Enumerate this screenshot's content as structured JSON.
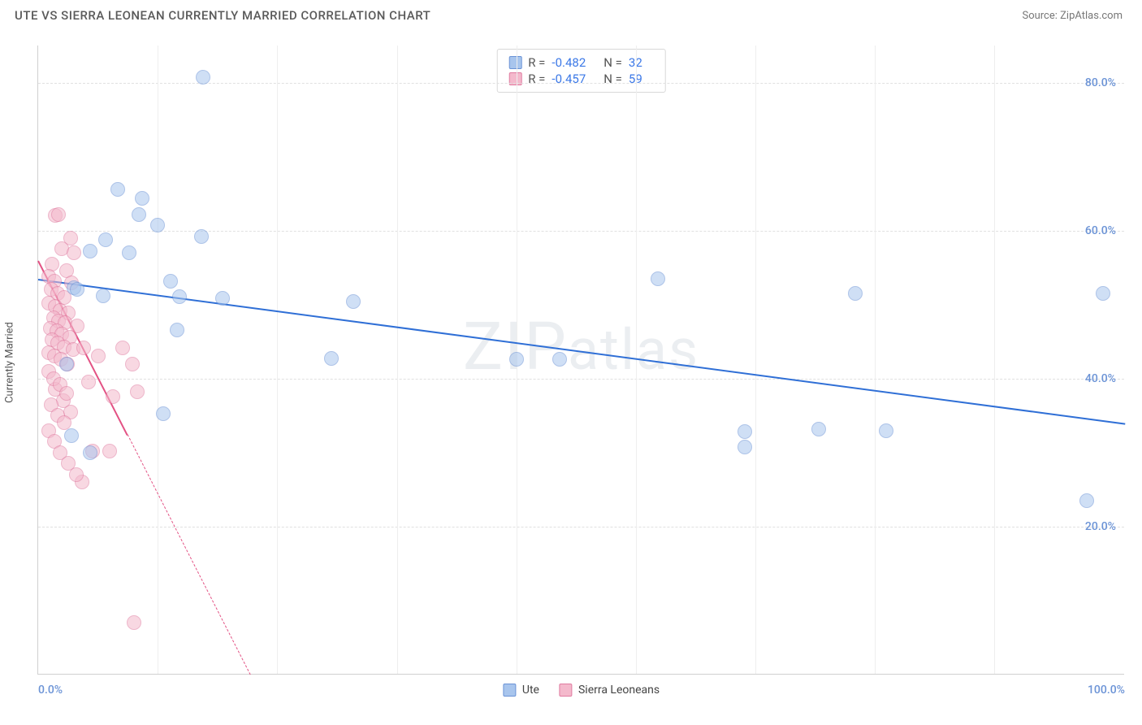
{
  "title": "UTE VS SIERRA LEONEAN CURRENTLY MARRIED CORRELATION CHART",
  "source_label": "Source: ZipAtlas.com",
  "yaxis_label": "Currently Married",
  "watermark": "ZIPatlas",
  "chart": {
    "type": "scatter",
    "background_color": "#ffffff",
    "grid_color": "#e0e0e0",
    "border_color": "#d0d0d0",
    "tick_label_color": "#6b93d6",
    "xlim": [
      0,
      100
    ],
    "ylim": [
      0,
      85
    ],
    "xticks": [
      0,
      100
    ],
    "xtick_labels": [
      "0.0%",
      "100.0%"
    ],
    "yticks": [
      20,
      40,
      60,
      80
    ],
    "ytick_labels": [
      "20.0%",
      "40.0%",
      "60.0%",
      "80.0%"
    ],
    "vgrid_positions": [
      11,
      22,
      33,
      44,
      55,
      66,
      77,
      88
    ],
    "point_radius": 9,
    "point_opacity": 0.55,
    "series": [
      {
        "name": "Ute",
        "fill_color": "#a8c5ed",
        "stroke_color": "#6b93d6",
        "r_value": "-0.482",
        "n_value": "32",
        "trend": {
          "x1": 0,
          "y1": 53.5,
          "x2": 100,
          "y2": 34,
          "width": 2,
          "color": "#2f6fd6",
          "dashed": false
        },
        "points": [
          [
            15.2,
            80.7
          ],
          [
            7.3,
            65.6
          ],
          [
            9.6,
            64.3
          ],
          [
            9.3,
            62.2
          ],
          [
            11.0,
            60.7
          ],
          [
            15.0,
            59.2
          ],
          [
            6.2,
            58.8
          ],
          [
            4.8,
            57.2
          ],
          [
            8.4,
            57.0
          ],
          [
            12.2,
            53.2
          ],
          [
            3.3,
            52.3
          ],
          [
            3.6,
            52.1
          ],
          [
            6.0,
            51.2
          ],
          [
            13.0,
            51.1
          ],
          [
            17.0,
            50.8
          ],
          [
            57.0,
            53.5
          ],
          [
            75.2,
            51.5
          ],
          [
            98.0,
            51.5
          ],
          [
            29.0,
            50.4
          ],
          [
            12.8,
            46.6
          ],
          [
            44.0,
            42.6
          ],
          [
            27.0,
            42.7
          ],
          [
            48.0,
            42.6
          ],
          [
            2.6,
            42.0
          ],
          [
            11.5,
            35.2
          ],
          [
            3.1,
            32.3
          ],
          [
            4.8,
            30.0
          ],
          [
            65.0,
            32.8
          ],
          [
            71.8,
            33.2
          ],
          [
            78.0,
            33.0
          ],
          [
            65.0,
            30.8
          ],
          [
            96.5,
            23.5
          ]
        ]
      },
      {
        "name": "Sierra Leoneans",
        "fill_color": "#f4b9cc",
        "stroke_color": "#e07ba0",
        "r_value": "-0.457",
        "n_value": "59",
        "trend": {
          "x1": 0,
          "y1": 56,
          "x2": 19.5,
          "y2": 0,
          "width": 2,
          "color": "#e35284",
          "dashed_from": 0.42
        },
        "points": [
          [
            1.6,
            62.0
          ],
          [
            1.9,
            62.2
          ],
          [
            3.0,
            59.0
          ],
          [
            2.2,
            57.5
          ],
          [
            3.3,
            57.0
          ],
          [
            1.3,
            55.5
          ],
          [
            2.6,
            54.6
          ],
          [
            1.0,
            53.8
          ],
          [
            1.5,
            53.2
          ],
          [
            3.1,
            52.9
          ],
          [
            1.2,
            52.0
          ],
          [
            1.8,
            51.5
          ],
          [
            2.4,
            51.0
          ],
          [
            1.0,
            50.2
          ],
          [
            1.6,
            49.8
          ],
          [
            2.0,
            49.2
          ],
          [
            2.8,
            48.9
          ],
          [
            1.4,
            48.2
          ],
          [
            1.9,
            47.8
          ],
          [
            2.5,
            47.5
          ],
          [
            3.6,
            47.1
          ],
          [
            1.1,
            46.8
          ],
          [
            1.7,
            46.4
          ],
          [
            2.2,
            46.0
          ],
          [
            2.9,
            45.6
          ],
          [
            1.3,
            45.2
          ],
          [
            1.8,
            44.8
          ],
          [
            2.4,
            44.3
          ],
          [
            3.2,
            43.9
          ],
          [
            1.0,
            43.5
          ],
          [
            1.5,
            43.0
          ],
          [
            2.1,
            42.6
          ],
          [
            2.7,
            42.0
          ],
          [
            4.2,
            44.2
          ],
          [
            5.5,
            43.0
          ],
          [
            7.8,
            44.2
          ],
          [
            8.7,
            42.0
          ],
          [
            4.6,
            39.5
          ],
          [
            6.9,
            37.6
          ],
          [
            9.1,
            38.2
          ],
          [
            1.6,
            38.5
          ],
          [
            2.3,
            37.0
          ],
          [
            3.0,
            35.5
          ],
          [
            5.0,
            30.2
          ],
          [
            6.6,
            30.2
          ],
          [
            4.0,
            26.0
          ],
          [
            8.8,
            7.0
          ],
          [
            1.0,
            41.0
          ],
          [
            1.4,
            40.0
          ],
          [
            2.0,
            39.2
          ],
          [
            2.6,
            38.0
          ],
          [
            1.2,
            36.5
          ],
          [
            1.8,
            35.0
          ],
          [
            2.4,
            34.0
          ],
          [
            1.0,
            33.0
          ],
          [
            1.5,
            31.5
          ],
          [
            2.0,
            30.0
          ],
          [
            2.8,
            28.5
          ],
          [
            3.5,
            27.0
          ]
        ]
      }
    ]
  },
  "legend_bottom": {
    "items": [
      "Ute",
      "Sierra Leoneans"
    ]
  }
}
